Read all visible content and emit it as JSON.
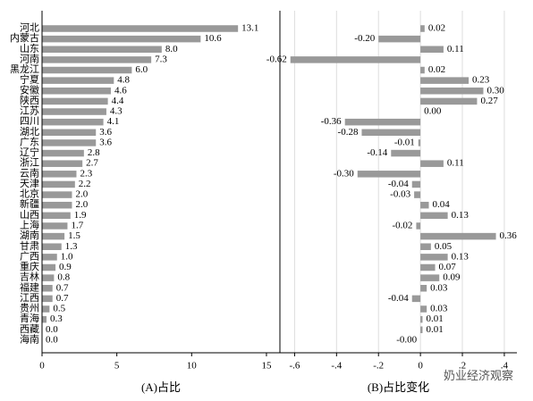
{
  "chart_data": [
    {
      "type": "hbar",
      "xlabel": "(A)占比",
      "color": "#999999",
      "categories": [
        "河北",
        "内蒙古",
        "山东",
        "河南",
        "黑龙江",
        "宁夏",
        "安徽",
        "陕西",
        "江苏",
        "四川",
        "湖北",
        "广东",
        "辽宁",
        "浙江",
        "云南",
        "天津",
        "北京",
        "新疆",
        "山西",
        "上海",
        "湖南",
        "甘肃",
        "广西",
        "重庆",
        "吉林",
        "福建",
        "江西",
        "贵州",
        "青海",
        "西藏",
        "海南"
      ],
      "values": [
        13.1,
        10.6,
        8.0,
        7.3,
        6.0,
        4.8,
        4.6,
        4.4,
        4.3,
        4.1,
        3.6,
        3.6,
        2.8,
        2.7,
        2.3,
        2.2,
        2.0,
        2.0,
        1.9,
        1.7,
        1.5,
        1.3,
        1.0,
        0.9,
        0.8,
        0.7,
        0.7,
        0.5,
        0.3,
        0.0,
        0.0
      ],
      "value_labels": [
        "13.1",
        "10.6",
        "8.0",
        "7.3",
        "6.0",
        "4.8",
        "4.6",
        "4.4",
        "4.3",
        "4.1",
        "3.6",
        "3.6",
        "2.8",
        "2.7",
        "2.3",
        "2.2",
        "2.0",
        "2.0",
        "1.9",
        "1.7",
        "1.5",
        "1.3",
        "1.0",
        "0.9",
        "0.8",
        "0.7",
        "0.7",
        "0.5",
        "0.3",
        "0.0",
        "0.0"
      ],
      "xlim": [
        0,
        15.9
      ],
      "xticks": [
        0,
        5,
        10,
        15
      ],
      "grid": false
    },
    {
      "type": "hbar",
      "xlabel": "(B)占比变化",
      "color": "#999999",
      "values": [
        0.02,
        -0.2,
        0.11,
        -0.62,
        0.02,
        0.23,
        0.3,
        0.27,
        0.0,
        -0.36,
        -0.28,
        -0.01,
        -0.14,
        0.11,
        -0.3,
        -0.04,
        -0.03,
        0.04,
        0.13,
        -0.02,
        0.36,
        0.05,
        0.13,
        0.07,
        0.09,
        0.03,
        -0.04,
        0.03,
        0.01,
        0.01,
        -0.0
      ],
      "value_labels": [
        "0.02",
        "-0.20",
        "0.11",
        "-0.62",
        "0.02",
        "0.23",
        "0.30",
        "0.27",
        "0.00",
        "-0.36",
        "-0.28",
        "-0.01",
        "-0.14",
        "0.11",
        "-0.30",
        "-0.04",
        "-0.03",
        "0.04",
        "0.13",
        "-0.02",
        "0.36",
        "0.05",
        "0.13",
        "0.07",
        "0.09",
        "0.03",
        "-0.04",
        "0.03",
        "0.01",
        "0.01",
        "-0.00"
      ],
      "xlim": [
        -0.67,
        0.46
      ],
      "xticks": [
        {
          "value": -0.6,
          "label": "-.6"
        },
        {
          "value": -0.4,
          "label": "-.4"
        },
        {
          "value": -0.2,
          "label": "-.2"
        },
        0,
        {
          "value": 0.2,
          "label": ".2"
        },
        {
          "value": 0.4,
          "label": ".4"
        }
      ],
      "grid": true
    }
  ],
  "watermark": "奶业经济观察"
}
